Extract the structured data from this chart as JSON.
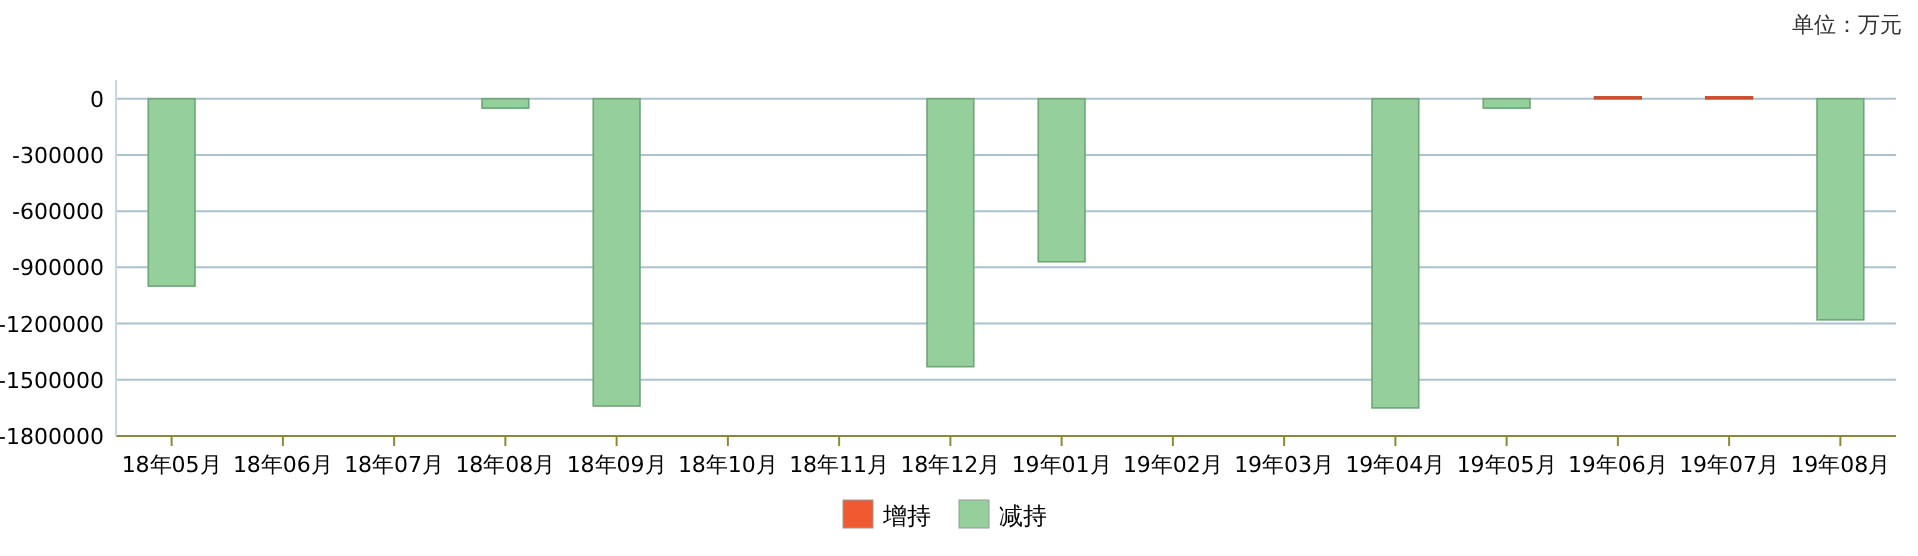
{
  "chart_data": {
    "type": "bar",
    "categories": [
      "18年05月",
      "18年06月",
      "18年07月",
      "18年08月",
      "18年09月",
      "18年10月",
      "18年11月",
      "18年12月",
      "19年01月",
      "19年02月",
      "19年03月",
      "19年04月",
      "19年05月",
      "19年06月",
      "19年07月",
      "19年08月"
    ],
    "series": [
      {
        "name": "增持",
        "color": "#f15a30",
        "values": [
          null,
          null,
          null,
          null,
          null,
          null,
          null,
          null,
          null,
          null,
          null,
          null,
          null,
          10000,
          10000,
          null
        ]
      },
      {
        "name": "减持",
        "color": "#95cf9c",
        "values": [
          -1000000,
          null,
          null,
          -50000,
          -1640000,
          null,
          null,
          -1430000,
          -870000,
          null,
          null,
          -1650000,
          -50000,
          null,
          null,
          -1180000
        ]
      }
    ],
    "ylim": [
      -1800000,
      100000
    ],
    "yticks": [
      -1800000,
      -1500000,
      -1200000,
      -900000,
      -600000,
      -300000,
      0
    ],
    "grid": "y",
    "legend": "bottom",
    "annotations": [
      "单位：万元"
    ]
  }
}
